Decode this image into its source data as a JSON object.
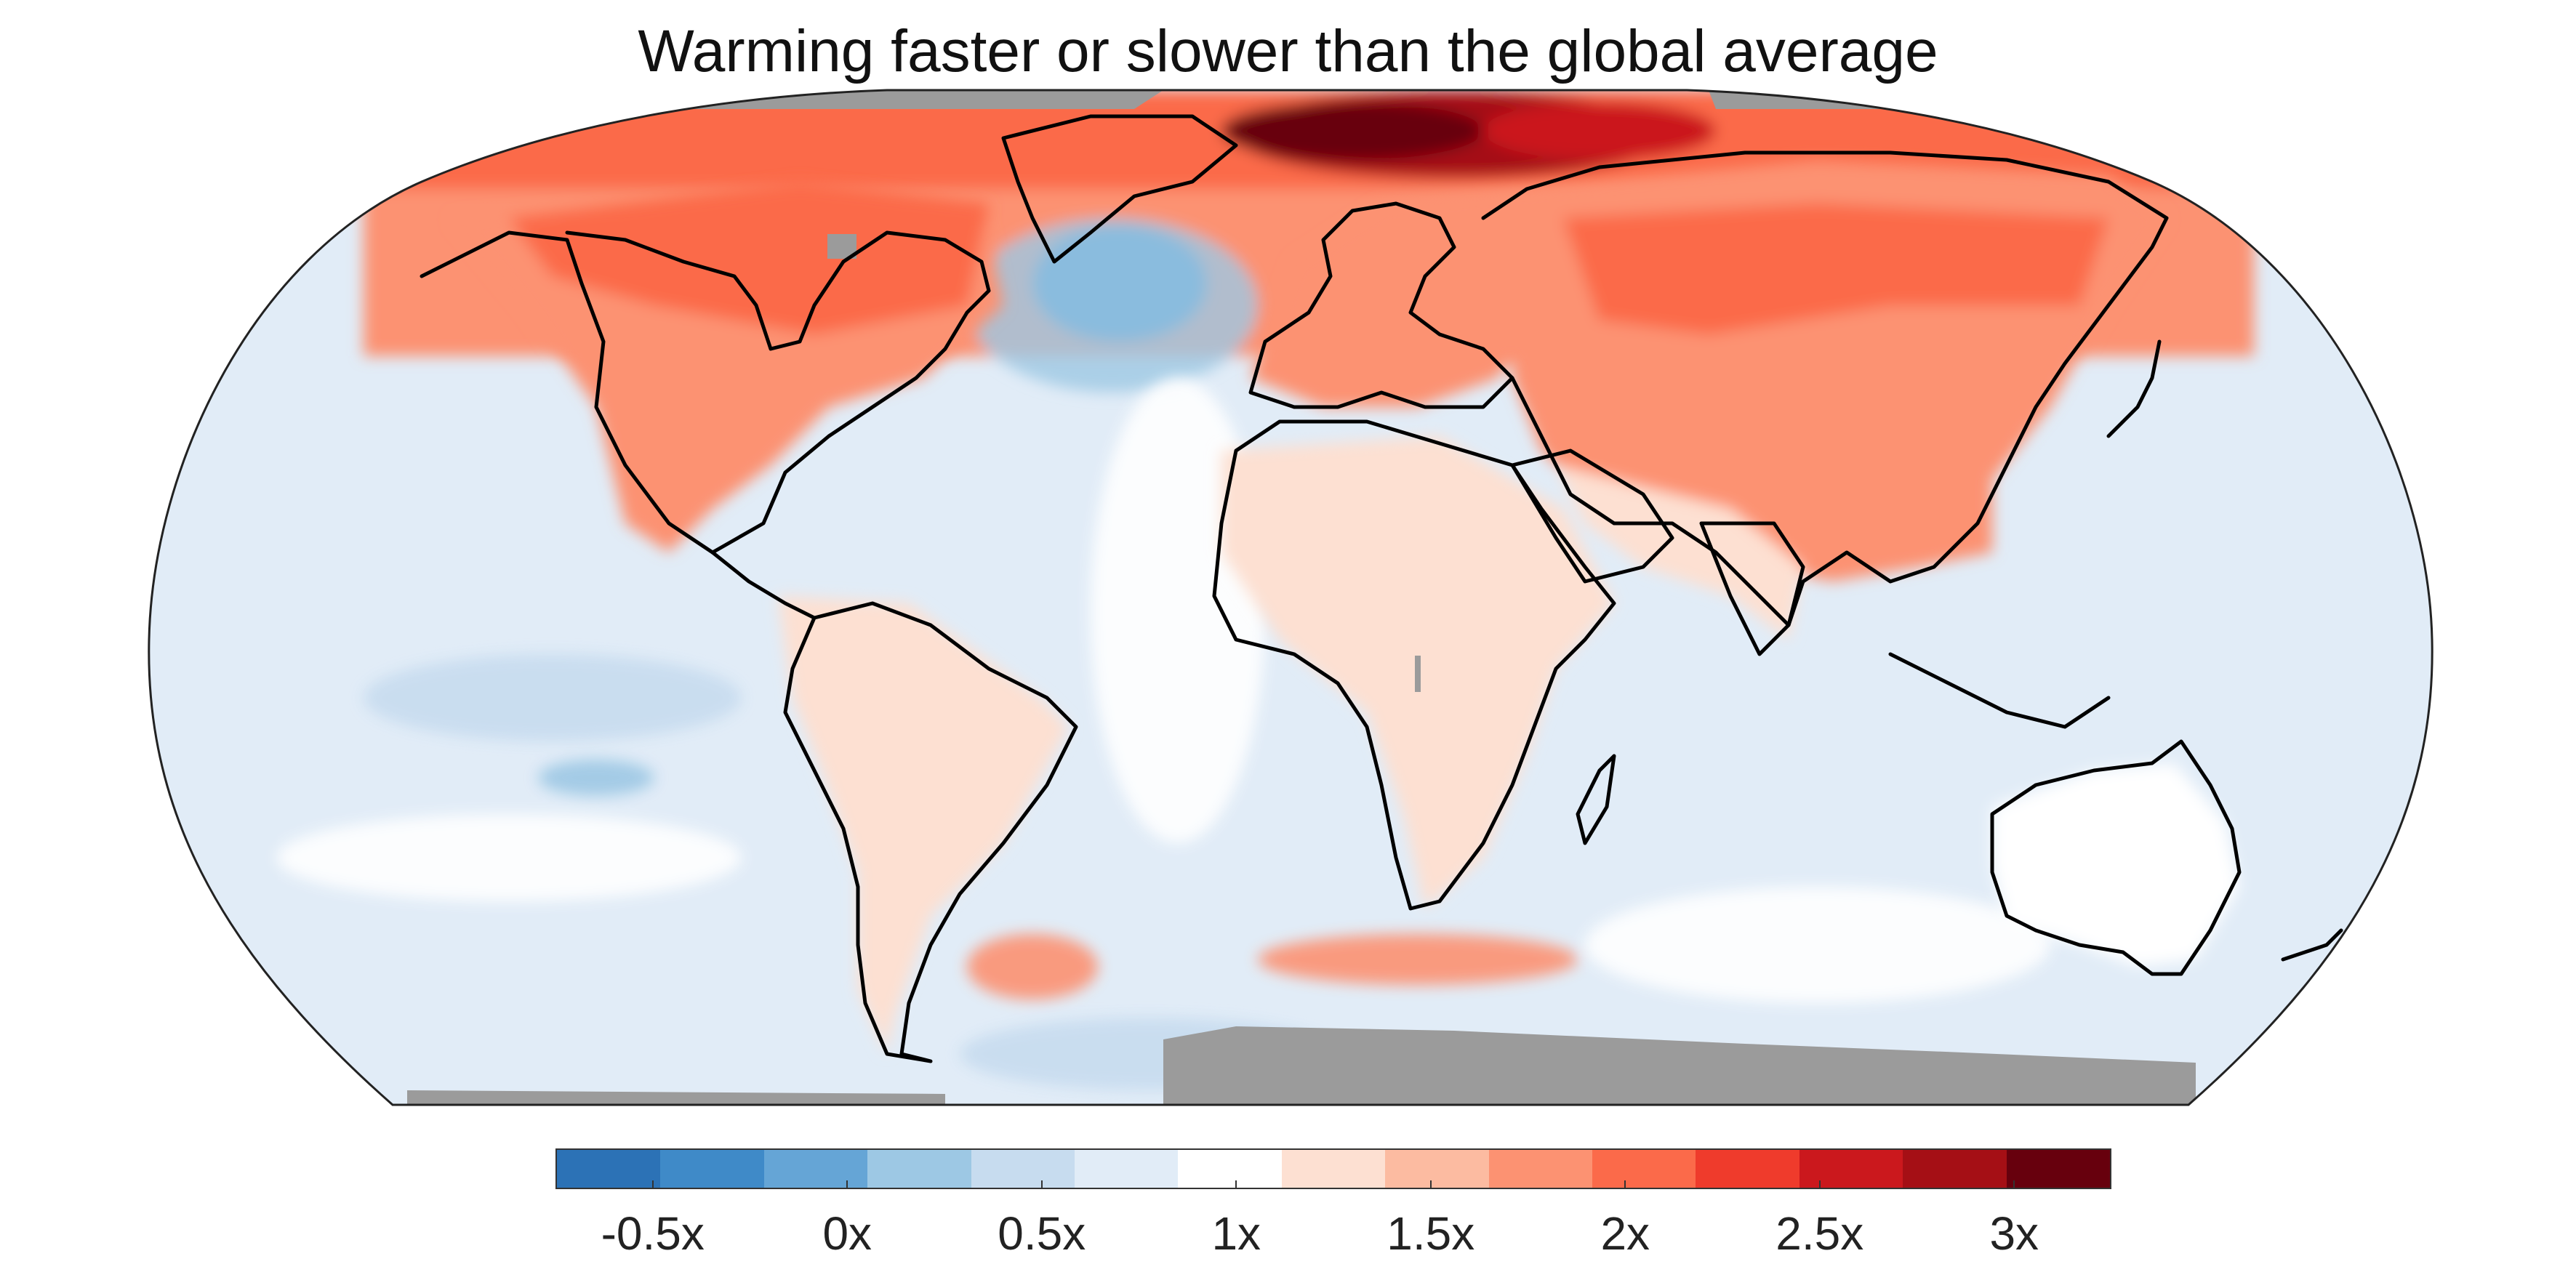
{
  "title": "Warming faster or slower than the global average",
  "colorbar": {
    "tick_labels": [
      "-0.5x",
      "0x",
      "0.5x",
      "1x",
      "1.5x",
      "2x",
      "2.5x",
      "3x"
    ],
    "tick_values": [
      -0.5,
      0,
      0.5,
      1,
      1.5,
      2,
      2.5,
      3
    ],
    "range": [
      -0.75,
      3.25
    ],
    "colors": [
      "#2c72b6",
      "#3f8ac8",
      "#65a5d6",
      "#9dc8e4",
      "#c7dcef",
      "#e1ecf7",
      "#ffffff",
      "#fde0d2",
      "#fcbba1",
      "#fc9272",
      "#fb6a4a",
      "#ef3b2c",
      "#cb181d",
      "#a50f15",
      "#67000d"
    ]
  },
  "map": {
    "projection": "Robinson",
    "missing_color": "#9b9b9b",
    "ocean_base_color": "#e1ecf7"
  }
}
